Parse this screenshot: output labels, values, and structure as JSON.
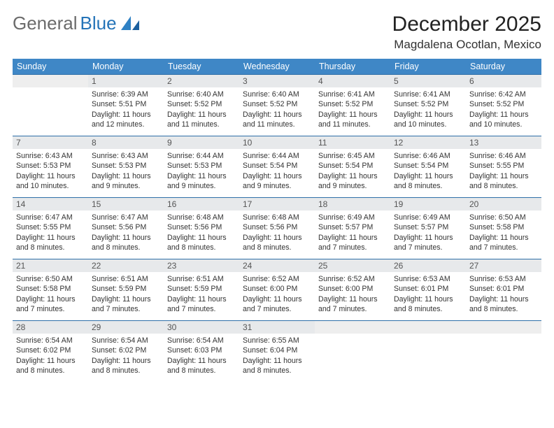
{
  "brand": {
    "part1": "General",
    "part2": "Blue"
  },
  "title": "December 2025",
  "location": "Magdalena Ocotlan, Mexico",
  "dows": [
    "Sunday",
    "Monday",
    "Tuesday",
    "Wednesday",
    "Thursday",
    "Friday",
    "Saturday"
  ],
  "colors": {
    "header_bg": "#3f87c6",
    "row_border": "#2f6fa8",
    "daynum_bg": "#e7e9eb",
    "logo_blue": "#2574b8"
  },
  "weeks": [
    [
      {
        "n": "",
        "sr": "",
        "ss": "",
        "dl": ""
      },
      {
        "n": "1",
        "sr": "6:39 AM",
        "ss": "5:51 PM",
        "dl": "11 hours and 12 minutes."
      },
      {
        "n": "2",
        "sr": "6:40 AM",
        "ss": "5:52 PM",
        "dl": "11 hours and 11 minutes."
      },
      {
        "n": "3",
        "sr": "6:40 AM",
        "ss": "5:52 PM",
        "dl": "11 hours and 11 minutes."
      },
      {
        "n": "4",
        "sr": "6:41 AM",
        "ss": "5:52 PM",
        "dl": "11 hours and 11 minutes."
      },
      {
        "n": "5",
        "sr": "6:41 AM",
        "ss": "5:52 PM",
        "dl": "11 hours and 10 minutes."
      },
      {
        "n": "6",
        "sr": "6:42 AM",
        "ss": "5:52 PM",
        "dl": "11 hours and 10 minutes."
      }
    ],
    [
      {
        "n": "7",
        "sr": "6:43 AM",
        "ss": "5:53 PM",
        "dl": "11 hours and 10 minutes."
      },
      {
        "n": "8",
        "sr": "6:43 AM",
        "ss": "5:53 PM",
        "dl": "11 hours and 9 minutes."
      },
      {
        "n": "9",
        "sr": "6:44 AM",
        "ss": "5:53 PM",
        "dl": "11 hours and 9 minutes."
      },
      {
        "n": "10",
        "sr": "6:44 AM",
        "ss": "5:54 PM",
        "dl": "11 hours and 9 minutes."
      },
      {
        "n": "11",
        "sr": "6:45 AM",
        "ss": "5:54 PM",
        "dl": "11 hours and 9 minutes."
      },
      {
        "n": "12",
        "sr": "6:46 AM",
        "ss": "5:54 PM",
        "dl": "11 hours and 8 minutes."
      },
      {
        "n": "13",
        "sr": "6:46 AM",
        "ss": "5:55 PM",
        "dl": "11 hours and 8 minutes."
      }
    ],
    [
      {
        "n": "14",
        "sr": "6:47 AM",
        "ss": "5:55 PM",
        "dl": "11 hours and 8 minutes."
      },
      {
        "n": "15",
        "sr": "6:47 AM",
        "ss": "5:56 PM",
        "dl": "11 hours and 8 minutes."
      },
      {
        "n": "16",
        "sr": "6:48 AM",
        "ss": "5:56 PM",
        "dl": "11 hours and 8 minutes."
      },
      {
        "n": "17",
        "sr": "6:48 AM",
        "ss": "5:56 PM",
        "dl": "11 hours and 8 minutes."
      },
      {
        "n": "18",
        "sr": "6:49 AM",
        "ss": "5:57 PM",
        "dl": "11 hours and 7 minutes."
      },
      {
        "n": "19",
        "sr": "6:49 AM",
        "ss": "5:57 PM",
        "dl": "11 hours and 7 minutes."
      },
      {
        "n": "20",
        "sr": "6:50 AM",
        "ss": "5:58 PM",
        "dl": "11 hours and 7 minutes."
      }
    ],
    [
      {
        "n": "21",
        "sr": "6:50 AM",
        "ss": "5:58 PM",
        "dl": "11 hours and 7 minutes."
      },
      {
        "n": "22",
        "sr": "6:51 AM",
        "ss": "5:59 PM",
        "dl": "11 hours and 7 minutes."
      },
      {
        "n": "23",
        "sr": "6:51 AM",
        "ss": "5:59 PM",
        "dl": "11 hours and 7 minutes."
      },
      {
        "n": "24",
        "sr": "6:52 AM",
        "ss": "6:00 PM",
        "dl": "11 hours and 7 minutes."
      },
      {
        "n": "25",
        "sr": "6:52 AM",
        "ss": "6:00 PM",
        "dl": "11 hours and 7 minutes."
      },
      {
        "n": "26",
        "sr": "6:53 AM",
        "ss": "6:01 PM",
        "dl": "11 hours and 8 minutes."
      },
      {
        "n": "27",
        "sr": "6:53 AM",
        "ss": "6:01 PM",
        "dl": "11 hours and 8 minutes."
      }
    ],
    [
      {
        "n": "28",
        "sr": "6:54 AM",
        "ss": "6:02 PM",
        "dl": "11 hours and 8 minutes."
      },
      {
        "n": "29",
        "sr": "6:54 AM",
        "ss": "6:02 PM",
        "dl": "11 hours and 8 minutes."
      },
      {
        "n": "30",
        "sr": "6:54 AM",
        "ss": "6:03 PM",
        "dl": "11 hours and 8 minutes."
      },
      {
        "n": "31",
        "sr": "6:55 AM",
        "ss": "6:04 PM",
        "dl": "11 hours and 8 minutes."
      },
      {
        "n": "",
        "sr": "",
        "ss": "",
        "dl": ""
      },
      {
        "n": "",
        "sr": "",
        "ss": "",
        "dl": ""
      },
      {
        "n": "",
        "sr": "",
        "ss": "",
        "dl": ""
      }
    ]
  ]
}
